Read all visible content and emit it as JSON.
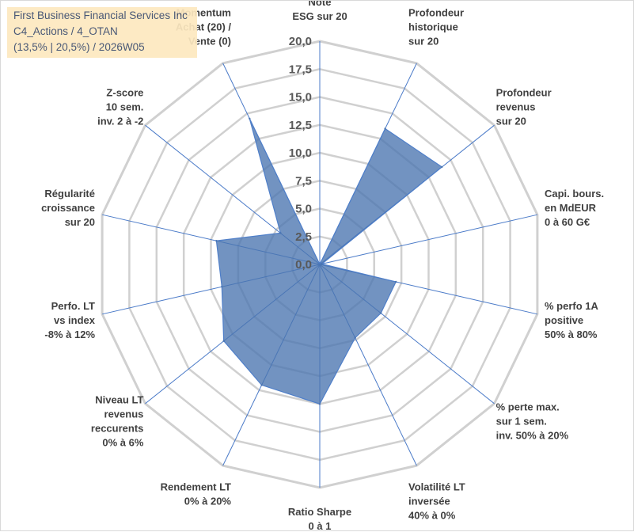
{
  "chart_data": {
    "type": "radar",
    "title_lines": [
      "First Business Financial Services Inc",
      "C4_Actions / 4_OTAN",
      "(13,5% | 20,5%) / 2026W05"
    ],
    "rmin": 0,
    "rmax": 20,
    "tick_values": [
      0,
      2.5,
      5,
      7.5,
      10,
      12.5,
      15,
      17.5,
      20
    ],
    "tick_labels": [
      "0,0",
      "2,5",
      "5,0",
      "7,5",
      "10,0",
      "12,5",
      "15,0",
      "17,5",
      "20,0"
    ],
    "axes": [
      {
        "label": [
          "Note",
          "ESG sur 20"
        ],
        "value": 0
      },
      {
        "label": [
          "Profondeur",
          "historique",
          "sur 20"
        ],
        "value": 13.5
      },
      {
        "label": [
          "Profondeur",
          "revenus",
          "sur 20"
        ],
        "value": 14
      },
      {
        "label": [
          "Capi. bours.",
          "en MdEUR",
          "0 à 60 G€"
        ],
        "value": 0.2
      },
      {
        "label": [
          "% perfo 1A",
          "positive",
          "50% à 80%"
        ],
        "value": 7
      },
      {
        "label": [
          "% perte max.",
          "sur 1 sem.",
          "inv. 50% à 20%"
        ],
        "value": 7
      },
      {
        "label": [
          "Volatilité LT",
          "inversée",
          "40% à 0%"
        ],
        "value": 7.3
      },
      {
        "label": [
          "Ratio Sharpe",
          "0 à 1"
        ],
        "value": 12.5
      },
      {
        "label": [
          "Rendement LT",
          "0% à 20%"
        ],
        "value": 12
      },
      {
        "label": [
          "Niveau LT",
          "revenus",
          "reccurents",
          "0% à 6%"
        ],
        "value": 11
      },
      {
        "label": [
          "Perfo. LT",
          "vs index",
          "-8% à 12%"
        ],
        "value": 9
      },
      {
        "label": [
          "Régularité",
          "croissance",
          "sur 20"
        ],
        "value": 9.5
      },
      {
        "label": [
          "Z-score",
          "10 sem.",
          "inv. 2 à -2"
        ],
        "value": 4.5
      },
      {
        "label": [
          "Momentum",
          "Achat (20) /",
          "Vente (0)"
        ],
        "value": 14.5
      }
    ],
    "series_color": "#4a74b0",
    "grid_color": "#d0d0d0",
    "spoke_color": "#4a7ac8"
  }
}
